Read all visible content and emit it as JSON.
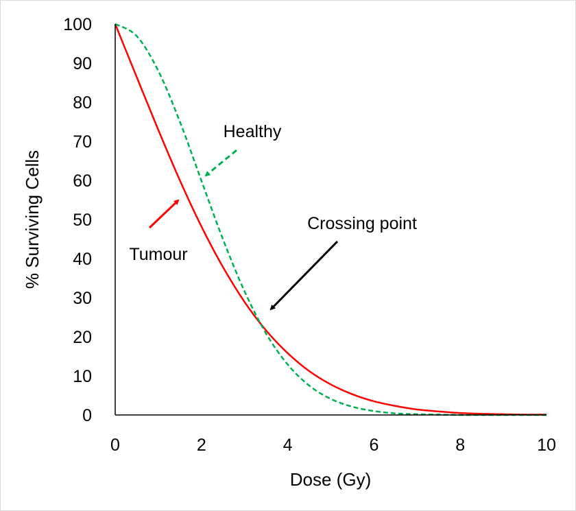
{
  "chart_data": {
    "type": "line",
    "title": "",
    "xlabel": "Dose (Gy)",
    "ylabel": "% Surviving Cells",
    "xlim": [
      0,
      10
    ],
    "ylim": [
      0,
      100
    ],
    "grid": false,
    "x_ticks": [
      "0",
      "2",
      "4",
      "6",
      "8",
      "10"
    ],
    "y_ticks": [
      "0",
      "10",
      "20",
      "30",
      "40",
      "50",
      "60",
      "70",
      "80",
      "90",
      "100"
    ],
    "x": [
      0,
      0.5,
      1,
      1.5,
      2,
      2.5,
      3,
      3.5,
      4,
      4.5,
      5,
      5.5,
      6,
      6.5,
      7,
      7.5,
      8,
      8.5,
      9,
      9.5,
      10
    ],
    "series": [
      {
        "name": "Tumour",
        "color": "#ff0000",
        "style": "solid",
        "values": [
          100,
          86.4,
          72.9,
          60.0,
          48.2,
          37.8,
          28.9,
          21.6,
          15.8,
          11.2,
          7.8,
          5.3,
          3.5,
          2.3,
          1.4,
          0.9,
          0.5,
          0.3,
          0.2,
          0.1,
          0.1
        ]
      },
      {
        "name": "Healthy",
        "color": "#00b050",
        "style": "dashed",
        "values": [
          100,
          96.9,
          88.0,
          75.0,
          59.9,
          44.9,
          31.6,
          20.8,
          12.9,
          7.5,
          4.1,
          2.1,
          1.0,
          0.4,
          0.2,
          0.1,
          0,
          0,
          0,
          0,
          0
        ]
      }
    ],
    "annotations": [
      {
        "text": "Healthy",
        "color": "#00b050",
        "arrow": "dashed"
      },
      {
        "text": "Tumour",
        "color": "#ff0000",
        "arrow": "solid"
      },
      {
        "text": "Crossing point",
        "color": "#000000",
        "arrow": "solid"
      }
    ]
  }
}
